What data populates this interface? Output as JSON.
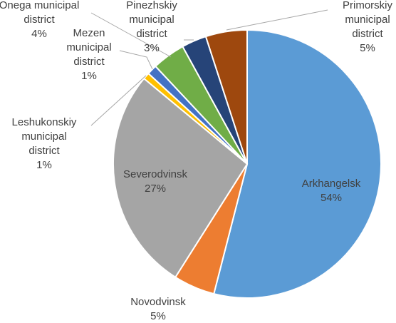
{
  "chart_data": {
    "type": "pie",
    "title": "",
    "slices": [
      {
        "label": "Arkhangelsk",
        "pct_label": "54%",
        "value": 54,
        "color": "#5B9BD5"
      },
      {
        "label": "Novodvinsk",
        "pct_label": "5%",
        "value": 5,
        "color": "#ED7D31"
      },
      {
        "label": "Severodvinsk",
        "pct_label": "27%",
        "value": 27,
        "color": "#A5A5A5"
      },
      {
        "label": "Leshukonskiy municipal district",
        "pct_label": "1%",
        "value": 0.8,
        "color": "#FFC000"
      },
      {
        "label": "Mezen municipal district",
        "pct_label": "1%",
        "value": 1.2,
        "color": "#4472C4"
      },
      {
        "label": "Onega municipal district",
        "pct_label": "4%",
        "value": 4,
        "color": "#70AD47"
      },
      {
        "label": "Pinezhskiy municipal district",
        "pct_label": "3%",
        "value": 3,
        "color": "#264478"
      },
      {
        "label": "Primorskiy municipal district",
        "pct_label": "5%",
        "value": 5,
        "color": "#9E480E"
      }
    ]
  }
}
